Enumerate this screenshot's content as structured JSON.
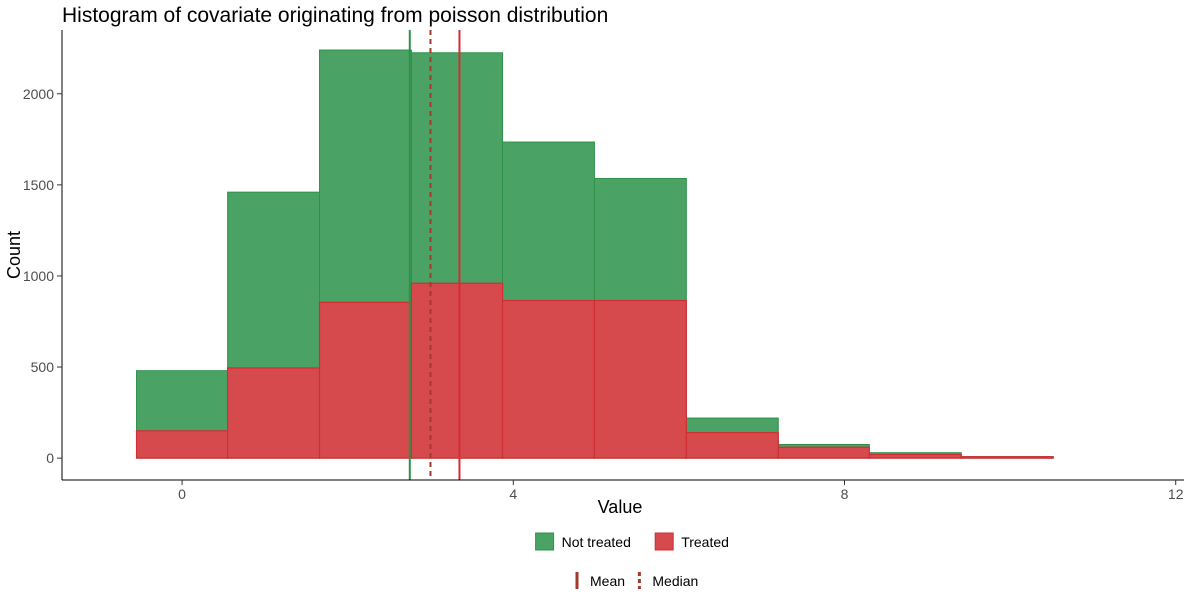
{
  "chart_data": {
    "type": "histogram",
    "title": "Histogram of covariate originating from poisson distribution",
    "xlabel": "Value",
    "ylabel": "Count",
    "xlim": [
      -1.45,
      12.1
    ],
    "ylim": [
      -120,
      2350
    ],
    "x_ticks": [
      0,
      4,
      8,
      12
    ],
    "y_ticks": [
      0,
      500,
      1000,
      1500,
      2000
    ],
    "bins": [
      {
        "x0": -0.55,
        "x1": 0.55
      },
      {
        "x0": 0.55,
        "x1": 1.66
      },
      {
        "x0": 1.66,
        "x1": 2.77
      },
      {
        "x0": 2.77,
        "x1": 3.87
      },
      {
        "x0": 3.87,
        "x1": 4.98
      },
      {
        "x0": 4.98,
        "x1": 6.09
      },
      {
        "x0": 6.09,
        "x1": 7.2
      },
      {
        "x0": 7.2,
        "x1": 8.3
      },
      {
        "x0": 8.3,
        "x1": 9.41
      },
      {
        "x0": 9.41,
        "x1": 10.52
      }
    ],
    "series": [
      {
        "name": "Not treated",
        "stacked_totals": [
          480,
          1460,
          2240,
          2225,
          1735,
          1535,
          220,
          75,
          30,
          8
        ],
        "fill": "#4aa364",
        "stroke": "#2e9249"
      },
      {
        "name": "Treated",
        "values": [
          150,
          495,
          855,
          960,
          865,
          865,
          140,
          60,
          20,
          8
        ],
        "fill": "#d64a4e",
        "stroke": "#d12e33"
      }
    ],
    "reference_lines": [
      {
        "series": "Not treated",
        "kind": "Mean",
        "x": 2.75,
        "color": "#2e9249",
        "style": "solid"
      },
      {
        "series": "Treated",
        "kind": "Mean",
        "x": 3.35,
        "color": "#d12e33",
        "style": "solid"
      },
      {
        "series": "All",
        "kind": "Median",
        "x": 3.0,
        "color": "#a23b2e",
        "style": "dashed"
      }
    ],
    "legend": {
      "position": "bottom",
      "fill_entries": [
        {
          "label": "Not treated",
          "color": "#4aa364"
        },
        {
          "label": "Treated",
          "color": "#d64a4e"
        }
      ],
      "line_entries": [
        {
          "label": "Mean",
          "style": "solid",
          "color": "#a23b2e"
        },
        {
          "label": "Median",
          "style": "dashed",
          "color": "#a23b2e"
        }
      ]
    }
  }
}
